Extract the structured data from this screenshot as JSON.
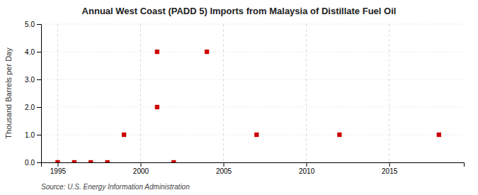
{
  "chart_data": {
    "type": "scatter",
    "title": "Annual West Coast (PADD 5) Imports from Malaysia of Distillate Fuel Oil",
    "ylabel": "Thousand Barrels per Day",
    "source": "Source: U.S. Energy Information Administration",
    "x": [
      1995,
      1996,
      1997,
      1998,
      1999,
      2001,
      2001,
      2002,
      2004,
      2007,
      2012,
      2018
    ],
    "values": [
      0.0,
      0.0,
      0.0,
      0.0,
      1.0,
      2.0,
      4.0,
      0.0,
      4.0,
      1.0,
      1.0,
      1.0
    ],
    "color": "#cc0000",
    "marker": "square",
    "xlim": [
      1994.0,
      2019.5
    ],
    "ylim": [
      0.0,
      5.0
    ],
    "xticks": [
      1995,
      2000,
      2005,
      2010,
      2015
    ],
    "yticks": [
      {
        "value": 0.0,
        "label": "0.0"
      },
      {
        "value": 1.0,
        "label": "1.0"
      },
      {
        "value": 2.0,
        "label": "2.0"
      },
      {
        "value": 3.0,
        "label": "3.0"
      },
      {
        "value": 4.0,
        "label": "4.0"
      },
      {
        "value": 5.0,
        "label": "5.0"
      }
    ],
    "grid": true
  }
}
